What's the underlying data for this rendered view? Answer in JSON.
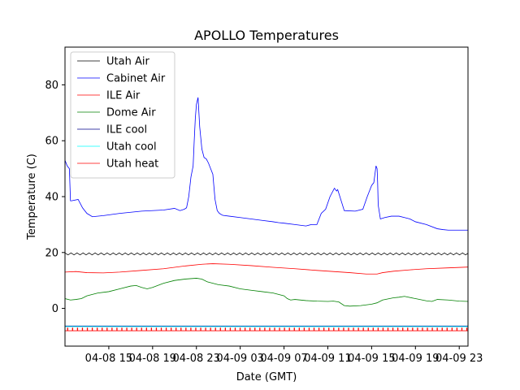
{
  "chart_data": {
    "type": "line",
    "title": "APOLLO Temperatures",
    "xlabel": "Date (GMT)",
    "ylabel": "Temperature (C)",
    "xlim": [
      11.0,
      47.8
    ],
    "ylim": [
      -13.5,
      93.5
    ],
    "x_unit": "hours since 04-08 00:00 GMT",
    "x_ticks": [
      {
        "value": 15,
        "label": "04-08 15"
      },
      {
        "value": 19,
        "label": "04-08 19"
      },
      {
        "value": 23,
        "label": "04-08 23"
      },
      {
        "value": 27,
        "label": "04-09 03"
      },
      {
        "value": 31,
        "label": "04-09 07"
      },
      {
        "value": 35,
        "label": "04-09 11"
      },
      {
        "value": 39,
        "label": "04-09 15"
      },
      {
        "value": 43,
        "label": "04-09 19"
      },
      {
        "value": 47,
        "label": "04-09 23"
      }
    ],
    "y_ticks": [
      {
        "value": 0,
        "label": "0"
      },
      {
        "value": 20,
        "label": "20"
      },
      {
        "value": 40,
        "label": "40"
      },
      {
        "value": 60,
        "label": "60"
      },
      {
        "value": 80,
        "label": "80"
      }
    ],
    "legend_position": "top-left",
    "series": [
      {
        "name": "Utah Air",
        "color": "#000000",
        "style": "sawtooth",
        "base": 19.5,
        "amplitude": 0.7,
        "period": 0.55,
        "x": [
          11.0,
          47.8
        ],
        "y": [
          19.5,
          19.5
        ]
      },
      {
        "name": "Cabinet Air",
        "color": "#0000ff",
        "style": "line",
        "x": [
          11.0,
          11.2,
          11.4,
          11.5,
          11.6,
          12.2,
          12.6,
          13.0,
          13.5,
          14.5,
          16.0,
          18.0,
          20.0,
          21.0,
          21.5,
          21.9,
          22.1,
          22.3,
          22.5,
          22.7,
          22.8,
          22.9,
          23.0,
          23.15,
          23.3,
          23.5,
          23.7,
          23.9,
          24.1,
          24.3,
          24.5,
          24.7,
          24.9,
          25.1,
          25.4,
          26.0,
          27.0,
          28.0,
          29.0,
          30.0,
          30.5,
          31.0,
          32.0,
          33.0,
          33.5,
          34.0,
          34.4,
          34.8,
          35.2,
          35.6,
          35.8,
          35.9,
          36.5,
          37.5,
          38.2,
          38.6,
          39.0,
          39.2,
          39.4,
          39.5,
          39.55,
          39.6,
          39.8,
          40.2,
          40.8,
          41.5,
          42.0,
          42.5,
          43.0,
          44.0,
          45.0,
          45.5,
          46.0,
          47.0,
          47.8
        ],
        "y": [
          53,
          51,
          50,
          38.5,
          38.5,
          39,
          36,
          34,
          32.8,
          33.2,
          34,
          34.8,
          35.2,
          35.8,
          35,
          35.5,
          36,
          40,
          47,
          51,
          60,
          68,
          73,
          75.5,
          65,
          57,
          54,
          53.5,
          52,
          50,
          48,
          39,
          35,
          34,
          33.3,
          33,
          32.5,
          32,
          31.5,
          31,
          30.7,
          30.5,
          30,
          29.5,
          30,
          30,
          34,
          35.5,
          40,
          43,
          42,
          42.5,
          35,
          34.8,
          35.5,
          40,
          44,
          45,
          51,
          50,
          45,
          37,
          32,
          32.5,
          33,
          33,
          32.5,
          32,
          31,
          30,
          28.5,
          28.2,
          28,
          28,
          28
        ]
      },
      {
        "name": "ILE Air",
        "color": "#ff0000",
        "style": "line",
        "x": [
          11.0,
          12.0,
          13.0,
          14.5,
          16.0,
          18.0,
          20.0,
          22.0,
          23.5,
          24.5,
          26.0,
          28.0,
          30.0,
          32.0,
          34.0,
          35.5,
          37.0,
          38.5,
          39.5,
          40.0,
          41.0,
          42.5,
          44.0,
          46.0,
          47.8
        ],
        "y": [
          13,
          13.2,
          12.8,
          12.7,
          13.0,
          13.6,
          14.2,
          15.2,
          15.8,
          16.0,
          15.8,
          15.3,
          14.7,
          14.2,
          13.6,
          13.2,
          12.8,
          12.3,
          12.3,
          12.8,
          13.3,
          13.8,
          14.2,
          14.5,
          14.8
        ]
      },
      {
        "name": "Dome Air",
        "color": "#008000",
        "style": "line",
        "x": [
          11.0,
          11.5,
          12.0,
          12.5,
          13.0,
          14.0,
          15.0,
          16.0,
          17.0,
          17.5,
          18.0,
          18.5,
          19.0,
          20.0,
          21.0,
          22.0,
          23.0,
          23.5,
          24.0,
          25.0,
          26.0,
          27.0,
          28.0,
          29.0,
          30.0,
          31.0,
          31.3,
          31.6,
          32.0,
          33.0,
          34.0,
          35.0,
          35.5,
          36.0,
          36.5,
          37.0,
          38.0,
          39.0,
          39.5,
          40.0,
          41.0,
          41.5,
          42.0,
          43.0,
          44.0,
          44.5,
          45.0,
          46.0,
          47.0,
          47.8
        ],
        "y": [
          3.5,
          3.0,
          3.2,
          3.5,
          4.5,
          5.5,
          6.0,
          7.0,
          8.0,
          8.2,
          7.5,
          7.0,
          7.5,
          9.0,
          10.0,
          10.5,
          10.8,
          10.5,
          9.5,
          8.5,
          8.0,
          7.0,
          6.5,
          6.0,
          5.5,
          4.5,
          3.5,
          3.0,
          3.2,
          2.8,
          2.6,
          2.5,
          2.6,
          2.3,
          1.0,
          0.8,
          1.0,
          1.5,
          2.0,
          3.0,
          3.8,
          4.0,
          4.3,
          3.5,
          2.7,
          2.5,
          3.2,
          3.0,
          2.6,
          2.5
        ]
      },
      {
        "name": "ILE cool",
        "color": "#00008b",
        "style": "line",
        "x": [
          11.0,
          47.8
        ],
        "y": [
          -6.3,
          -6.3
        ]
      },
      {
        "name": "Utah cool",
        "color": "#00ffff",
        "style": "line",
        "x": [
          11.0,
          47.8
        ],
        "y": [
          -6.5,
          -6.5
        ]
      },
      {
        "name": "Utah heat",
        "color": "#ff0000",
        "style": "pulses",
        "base": -8.0,
        "peak": -7.0,
        "period": 0.45,
        "x": [
          11.0,
          47.8
        ],
        "y": [
          -8.0,
          -8.0
        ]
      }
    ]
  }
}
